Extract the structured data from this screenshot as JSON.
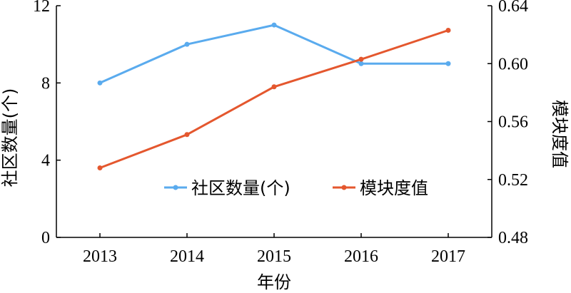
{
  "chart_data": {
    "type": "line",
    "title": "",
    "categories": [
      "2013",
      "2014",
      "2015",
      "2016",
      "2017"
    ],
    "xlabel": "年份",
    "ylabel_left": "社区数量(个)",
    "ylabel_right": "模块度值",
    "ylim_left": [
      0,
      12
    ],
    "ylim_right": [
      0.48,
      0.64
    ],
    "yticks_left": [
      "0",
      "4",
      "8",
      "12"
    ],
    "yticks_right": [
      "0.48",
      "0.52",
      "0.56",
      "0.60",
      "0.64"
    ],
    "grid": false,
    "legend_placement": "lower-center",
    "series": [
      {
        "name": "社区数量(个)",
        "axis": "left",
        "color": "#5aabee",
        "values": [
          8,
          10,
          11,
          9,
          9
        ]
      },
      {
        "name": "模块度值",
        "axis": "right",
        "color": "#e4572e",
        "values": [
          0.528,
          0.551,
          0.584,
          0.603,
          0.623
        ]
      }
    ]
  }
}
